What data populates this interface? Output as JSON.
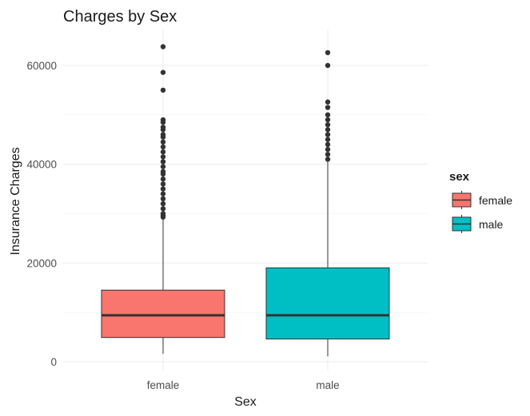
{
  "chart_data": {
    "type": "boxplot",
    "title": "Charges by Sex",
    "xlabel": "Sex",
    "ylabel": "Insurance Charges",
    "categories": [
      "female",
      "male"
    ],
    "ylim": [
      0,
      67000
    ],
    "yticks": [
      0,
      20000,
      40000,
      60000
    ],
    "ytick_labels": [
      "0",
      "20000",
      "40000",
      "60000"
    ],
    "grid": true,
    "legend": {
      "title": "sex",
      "position": "right",
      "entries": [
        {
          "label": "female",
          "color": "#F8766D"
        },
        {
          "label": "male",
          "color": "#00BFC4"
        }
      ]
    },
    "series": [
      {
        "category": "female",
        "color": "#F8766D",
        "whisker_low": 1600,
        "q1": 4900,
        "median": 9400,
        "q3": 14500,
        "whisker_high": 28800,
        "outliers": [
          29300,
          29600,
          30000,
          31000,
          32000,
          33000,
          34000,
          35000,
          36000,
          37000,
          38000,
          38500,
          39500,
          40500,
          41500,
          42500,
          43500,
          44500,
          45500,
          46000,
          47000,
          47500,
          48500,
          49000,
          55000,
          58600,
          63800
        ]
      },
      {
        "category": "male",
        "color": "#00BFC4",
        "whisker_low": 1100,
        "q1": 4600,
        "median": 9400,
        "q3": 19000,
        "whisker_high": 40800,
        "outliers": [
          41000,
          42000,
          43000,
          44000,
          45000,
          46000,
          47000,
          48000,
          49000,
          50000,
          51500,
          52600,
          60000,
          62600
        ]
      }
    ]
  }
}
